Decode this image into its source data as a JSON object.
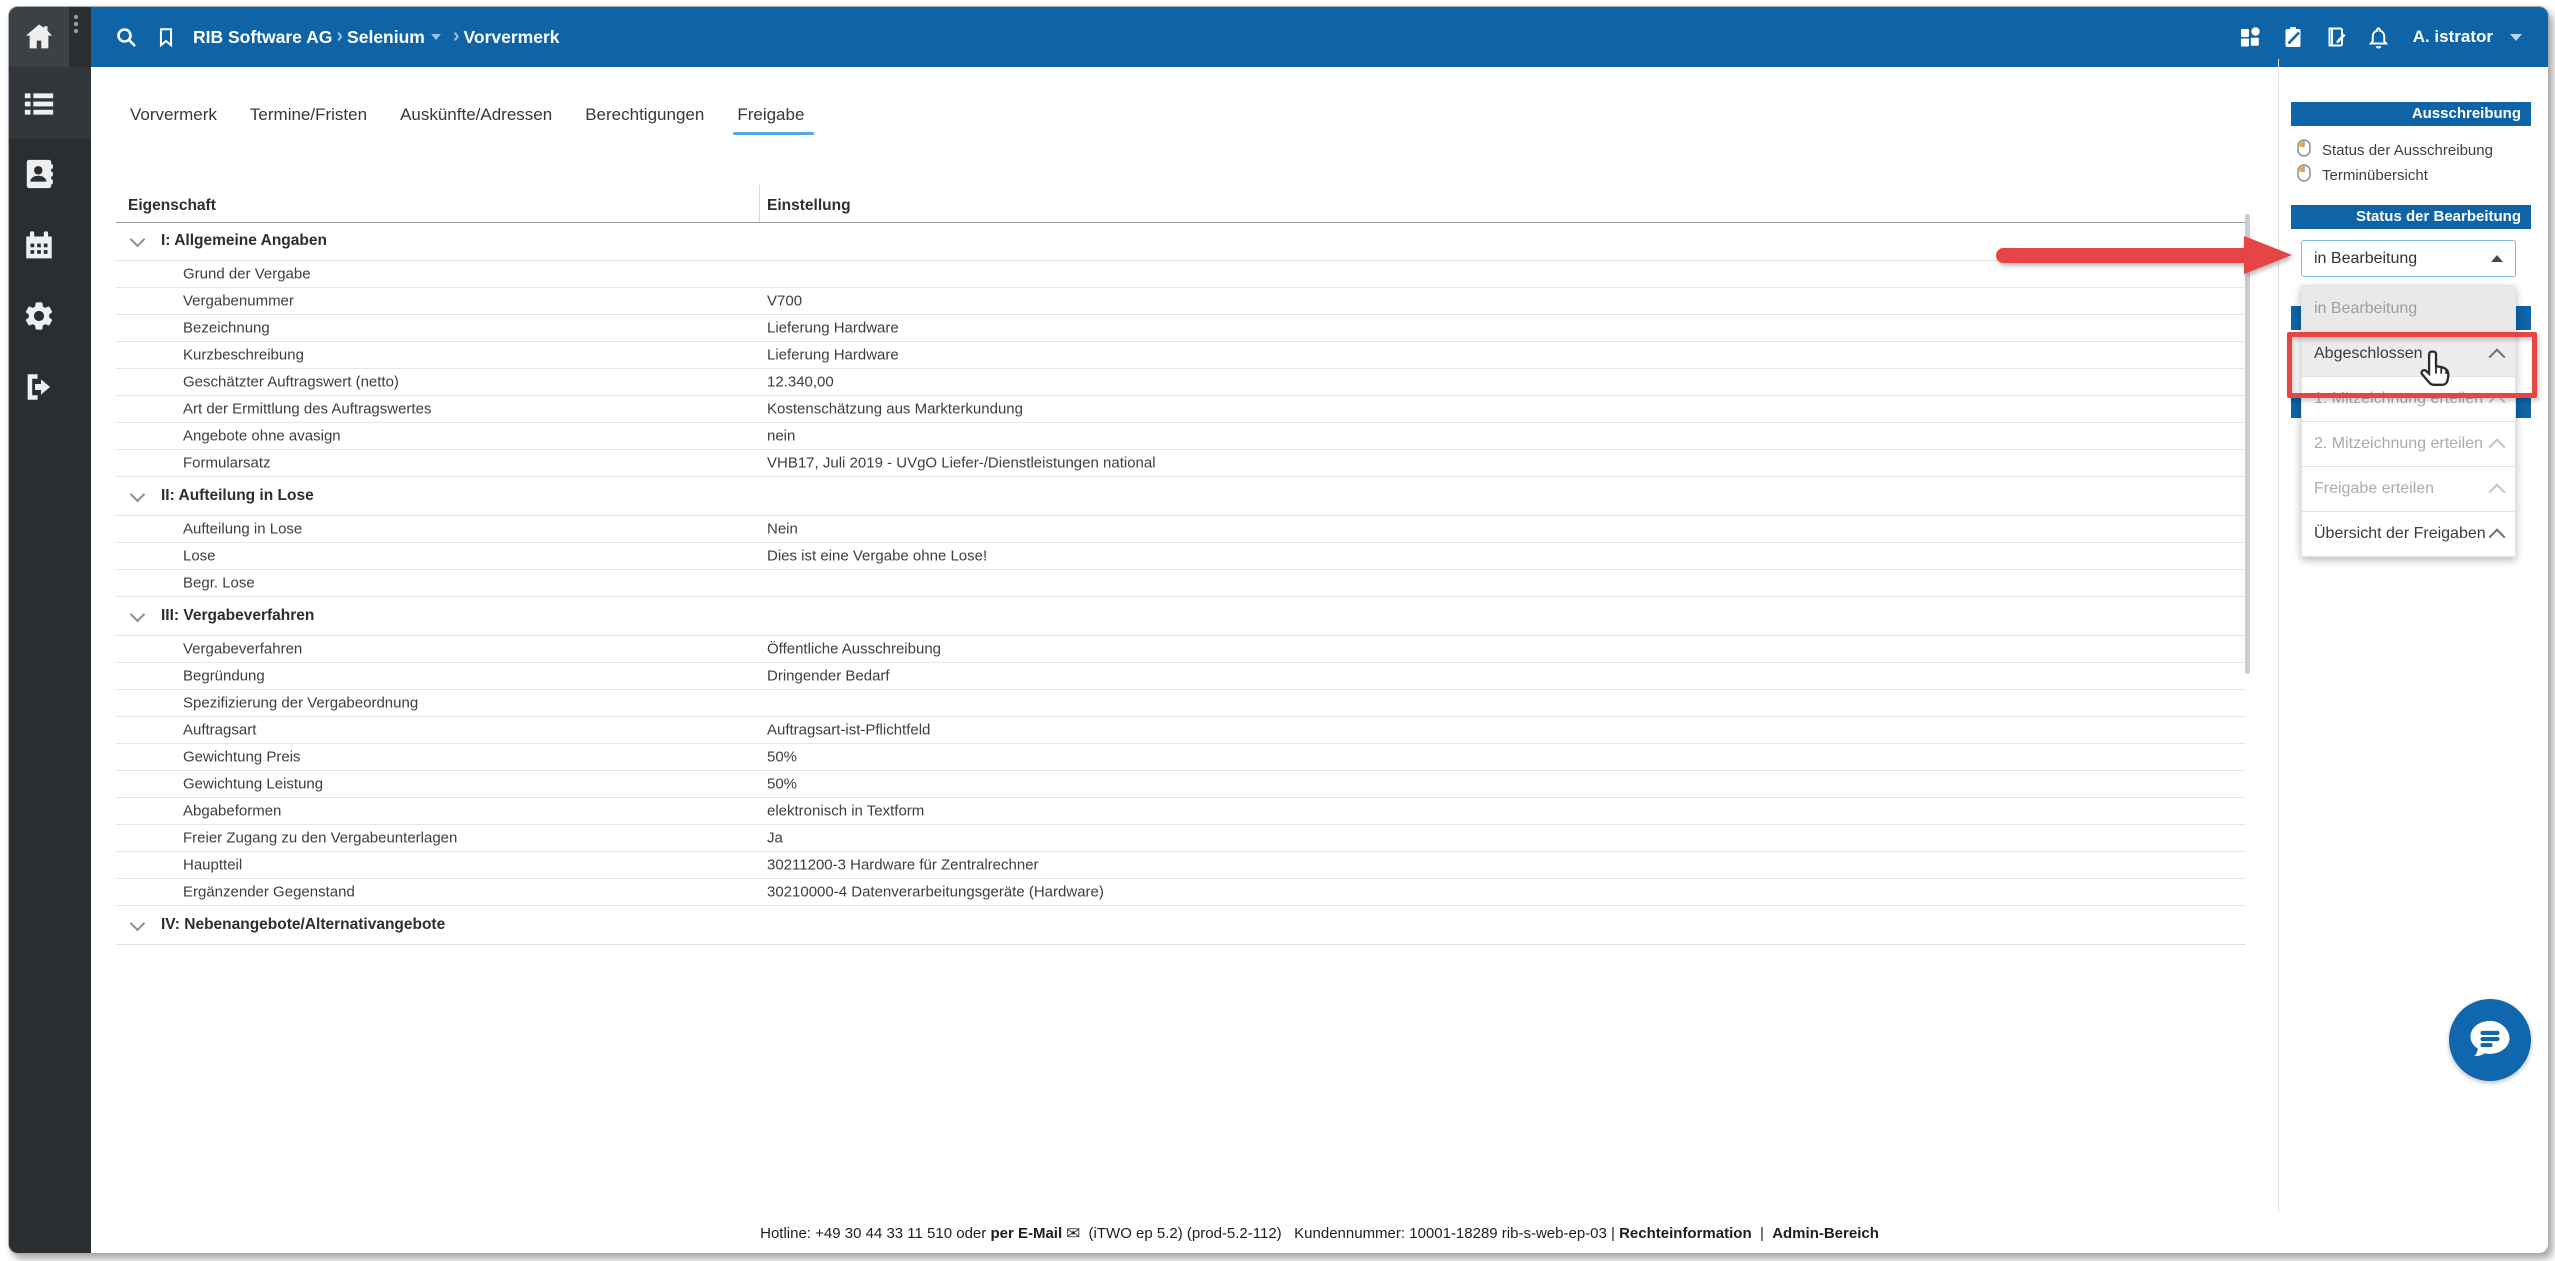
{
  "topbar": {
    "breadcrumb": [
      "RIB Software AG",
      "Selenium",
      "Vorvermerk"
    ],
    "user": "A. istrator",
    "icons": [
      "search-icon",
      "bookmark-icon",
      "apps-grid-icon",
      "tasks-clipboard-icon",
      "journal-icon",
      "notifications-bell-icon"
    ]
  },
  "tabs": {
    "items": [
      "Vorvermerk",
      "Termine/Fristen",
      "Auskünfte/Adressen",
      "Berechtigungen",
      "Freigabe"
    ],
    "active": "Freigabe"
  },
  "table": {
    "columns": [
      "Eigenschaft",
      "Einstellung"
    ],
    "sections": [
      {
        "title": "I: Allgemeine Angaben",
        "rows": [
          {
            "label": "Grund der Vergabe",
            "value": ""
          },
          {
            "label": "Vergabenummer",
            "value": "V700"
          },
          {
            "label": "Bezeichnung",
            "value": "Lieferung Hardware"
          },
          {
            "label": "Kurzbeschreibung",
            "value": "Lieferung Hardware"
          },
          {
            "label": "Geschätzter Auftragswert (netto)",
            "value": "12.340,00"
          },
          {
            "label": "Art der Ermittlung des Auftragswertes",
            "value": "Kostenschätzung aus Markterkundung"
          },
          {
            "label": "Angebote ohne avasign",
            "value": "nein"
          },
          {
            "label": "Formularsatz",
            "value": "VHB17, Juli 2019 - UVgO Liefer-/Dienstleistungen national"
          }
        ]
      },
      {
        "title": "II: Aufteilung in Lose",
        "rows": [
          {
            "label": "Aufteilung in Lose",
            "value": "Nein"
          },
          {
            "label": "Lose",
            "value": "Dies ist eine Vergabe ohne Lose!"
          },
          {
            "label": "Begr. Lose",
            "value": ""
          }
        ]
      },
      {
        "title": "III: Vergabeverfahren",
        "rows": [
          {
            "label": "Vergabeverfahren",
            "value": "Öffentliche Ausschreibung"
          },
          {
            "label": "Begründung",
            "value": "Dringender Bedarf"
          },
          {
            "label": "Spezifizierung der Vergabeordnung",
            "value": ""
          },
          {
            "label": "Auftragsart",
            "value": "Auftragsart-ist-Pflichtfeld"
          },
          {
            "label": "Gewichtung Preis",
            "value": "50%"
          },
          {
            "label": "Gewichtung Leistung",
            "value": "50%"
          },
          {
            "label": "Abgabeformen",
            "value": "elektronisch in Textform"
          },
          {
            "label": "Freier Zugang zu den Vergabeunterlagen",
            "value": "Ja"
          },
          {
            "label": "Hauptteil",
            "value": "30211200-3 Hardware für Zentralrechner"
          },
          {
            "label": "Ergänzender Gegenstand",
            "value": "30210000-4 Datenverarbeitungsgeräte (Hardware)"
          }
        ]
      },
      {
        "title": "IV: Nebenangebote/Alternativangebote",
        "rows": []
      }
    ]
  },
  "right_panel": {
    "ausschreibung": {
      "title": "Ausschreibung",
      "items": [
        "Status der Ausschreibung",
        "Terminübersicht"
      ]
    },
    "bearbeitung": {
      "title": "Status der Bearbeitung"
    },
    "status_select": {
      "value": "in Bearbeitung",
      "options": [
        {
          "label": "in Bearbeitung",
          "state": "selected",
          "chevron": false
        },
        {
          "label": "Abgeschlossen",
          "state": "hovered",
          "chevron": "dark"
        },
        {
          "label": "1. Mitzeichnung erteilen",
          "state": "disabled",
          "chevron": "light"
        },
        {
          "label": "2. Mitzeichnung erteilen",
          "state": "disabled",
          "chevron": "light"
        },
        {
          "label": "Freigabe erteilen",
          "state": "disabled",
          "chevron": "light"
        },
        {
          "label": "Übersicht der Freigaben",
          "state": "normal",
          "chevron": "dark"
        }
      ]
    }
  },
  "footer": {
    "segments": [
      {
        "text": "Hotline: +49 30 44 33 11 510 oder ",
        "bold": false
      },
      {
        "text": "per E-Mail",
        "bold": true
      },
      {
        "icon": "envelope-icon"
      },
      {
        "text": " (iTWO ep 5.2) (prod-5.2-112)   Kundennummer: 10001-18289 rib-s-web-ep-03 | ",
        "bold": false
      },
      {
        "text": "Rechteinformation",
        "bold": true
      },
      {
        "text": "  |  ",
        "bold": false
      },
      {
        "text": "Admin-Bereich",
        "bold": true
      }
    ]
  },
  "colors": {
    "topbar_blue": "#0F64A8",
    "tab_underline": "#54A6E4",
    "annotation_red": "#E64545",
    "sidebar_dark": "#2B2E31",
    "chat_blue": "#1167AE",
    "mouse_icon_orange": "#E8A03C"
  }
}
